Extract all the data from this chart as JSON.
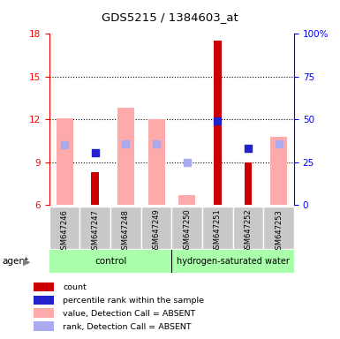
{
  "title": "GDS5215 / 1384603_at",
  "samples": [
    "GSM647246",
    "GSM647247",
    "GSM647248",
    "GSM647249",
    "GSM647250",
    "GSM647251",
    "GSM647252",
    "GSM647253"
  ],
  "ylim_left": [
    6,
    18
  ],
  "ylim_right": [
    0,
    100
  ],
  "yticks_left": [
    6,
    9,
    12,
    15,
    18
  ],
  "yticks_right": [
    0,
    25,
    50,
    75,
    100
  ],
  "ytick_labels_right": [
    "0",
    "25",
    "50",
    "75",
    "100%"
  ],
  "grid_yticks": [
    9,
    12,
    15
  ],
  "red_bars": [
    null,
    8.3,
    null,
    null,
    null,
    17.5,
    9.0,
    null
  ],
  "pink_bars": [
    12.1,
    null,
    12.8,
    12.0,
    6.7,
    null,
    null,
    10.8
  ],
  "blue_squares": [
    null,
    9.7,
    null,
    null,
    null,
    11.9,
    10.0,
    null
  ],
  "light_blue_squares": [
    10.2,
    null,
    10.3,
    10.3,
    9.0,
    null,
    null,
    10.3
  ],
  "bar_bottom": 6,
  "pink_bar_width": 0.55,
  "red_bar_width": 0.25,
  "red_color": "#cc0000",
  "pink_color": "#ffaaaa",
  "blue_color": "#2222cc",
  "light_blue_color": "#aaaaee",
  "gray_bg": "#c8c8c8",
  "group_green": "#aaffaa",
  "legend_items": [
    {
      "color": "#cc0000",
      "label": "count"
    },
    {
      "color": "#2222cc",
      "label": "percentile rank within the sample"
    },
    {
      "color": "#ffaaaa",
      "label": "value, Detection Call = ABSENT"
    },
    {
      "color": "#aaaaee",
      "label": "rank, Detection Call = ABSENT"
    }
  ]
}
